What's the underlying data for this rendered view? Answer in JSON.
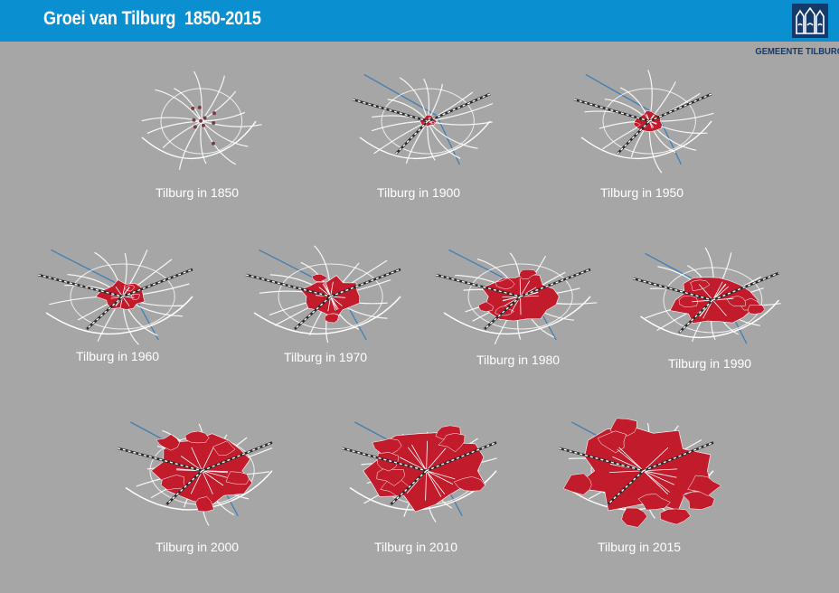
{
  "header": {
    "title": "Groei van Tilburg  1850-2015",
    "organization": "GEMEENTE TILBURG",
    "accent_color": "#0a8fd0",
    "logo_color": "#14396b",
    "logo_icon": "tilburg-coat-of-arms-icon"
  },
  "colors": {
    "background": "#a7a6a6",
    "urban_area": "#c21b2c",
    "roads": "#ffffff",
    "railway": "#2b2b2b",
    "canal": "#3f7fb5"
  },
  "maps": [
    {
      "caption": "Tilburg in 1850",
      "growth": 0.06
    },
    {
      "caption": "Tilburg in 1900",
      "growth": 0.14
    },
    {
      "caption": "Tilburg in 1950",
      "growth": 0.24
    },
    {
      "caption": "Tilburg in 1960",
      "growth": 0.36
    },
    {
      "caption": "Tilburg in 1970",
      "growth": 0.46
    },
    {
      "caption": "Tilburg in 1980",
      "growth": 0.56
    },
    {
      "caption": "Tilburg in 1990",
      "growth": 0.64
    },
    {
      "caption": "Tilburg in 2000",
      "growth": 0.76
    },
    {
      "caption": "Tilburg in 2010",
      "growth": 0.88
    },
    {
      "caption": "Tilburg in 2015",
      "growth": 1.0
    }
  ]
}
